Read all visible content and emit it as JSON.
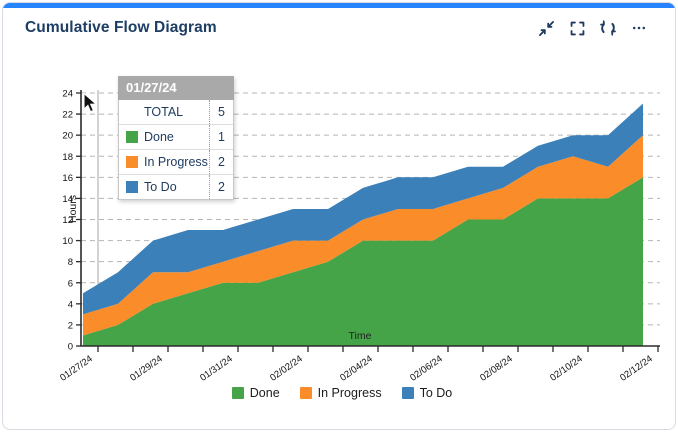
{
  "header": {
    "title": "Cumulative Flow Diagram",
    "accent_color": "#2684FF",
    "icon_color": "#1e3a5f",
    "icons": [
      "collapse-icon",
      "fullscreen-icon",
      "refresh-icon",
      "more-icon"
    ]
  },
  "tooltip": {
    "date": "01/27/24",
    "total_label": "TOTAL",
    "total_value": "5",
    "rows": [
      {
        "label": "Done",
        "value": "1",
        "color": "#45A348"
      },
      {
        "label": "In Progress",
        "value": "2",
        "color": "#FA8C29"
      },
      {
        "label": "To Do",
        "value": "2",
        "color": "#3B80B8"
      }
    ]
  },
  "chart_data": {
    "type": "area",
    "stacked": true,
    "title": "Cumulative Flow Diagram",
    "xlabel": "Time",
    "ylabel": "Hours",
    "ylim": [
      0,
      24
    ],
    "ytick_step": 2,
    "grid": "horizontal-dashed",
    "legend_position": "bottom",
    "categories": [
      "01/27/24",
      "01/28/24",
      "01/29/24",
      "01/30/24",
      "01/31/24",
      "02/01/24",
      "02/02/24",
      "02/03/24",
      "02/04/24",
      "02/05/24",
      "02/06/24",
      "02/07/24",
      "02/08/24",
      "02/09/24",
      "02/10/24",
      "02/11/24",
      "02/12/24"
    ],
    "x_tick_labels": [
      "01/27/24",
      "01/29/24",
      "01/31/24",
      "02/02/24",
      "02/04/24",
      "02/06/24",
      "02/08/24",
      "02/10/24",
      "02/12/24"
    ],
    "series": [
      {
        "name": "Done",
        "color": "#45A348",
        "values": [
          1,
          2,
          4,
          5,
          6,
          6,
          7,
          8,
          10,
          10,
          10,
          12,
          12,
          14,
          14,
          14,
          16
        ]
      },
      {
        "name": "In Progress",
        "color": "#FA8C29",
        "values": [
          2,
          2,
          3,
          2,
          2,
          3,
          3,
          2,
          2,
          3,
          3,
          2,
          3,
          3,
          4,
          3,
          4
        ]
      },
      {
        "name": "To Do",
        "color": "#3B80B8",
        "values": [
          2,
          3,
          3,
          4,
          3,
          3,
          3,
          3,
          3,
          3,
          3,
          3,
          2,
          2,
          2,
          3,
          3
        ]
      }
    ],
    "cumulative_totals": [
      5,
      7,
      10,
      11,
      11,
      12,
      13,
      13,
      15,
      16,
      16,
      17,
      17,
      19,
      20,
      20,
      23
    ],
    "hover_category": "01/27/24"
  }
}
